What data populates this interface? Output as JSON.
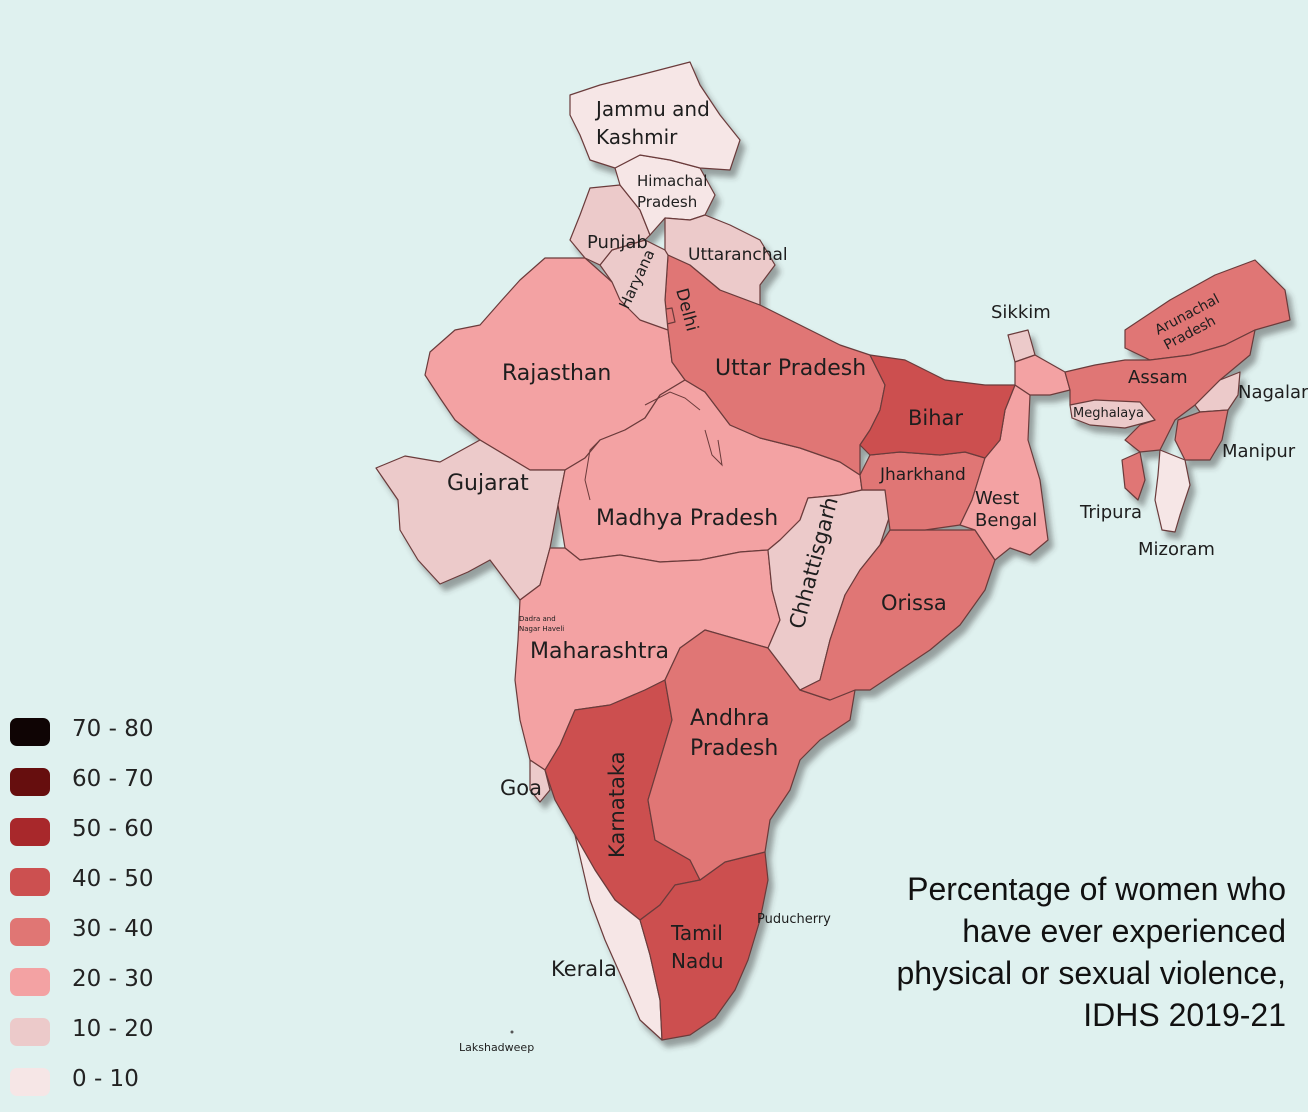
{
  "caption": {
    "line1": "Percentage of women who",
    "line2": "have ever experienced",
    "line3": "physical or sexual violence,",
    "line4": "IDHS 2019-21"
  },
  "legend": [
    {
      "label": "70 - 80",
      "color": "#0f0404"
    },
    {
      "label": "60 - 70",
      "color": "#660e0e"
    },
    {
      "label": "50 - 60",
      "color": "#a8282b"
    },
    {
      "label": "40 - 50",
      "color": "#cc5050"
    },
    {
      "label": "30 - 40",
      "color": "#e07674"
    },
    {
      "label": "20 - 30",
      "color": "#f3a2a3"
    },
    {
      "label": "10 - 20",
      "color": "#eccaca"
    },
    {
      "label": "0 - 10",
      "color": "#f6e6e6"
    }
  ],
  "states": {
    "jammu_kashmir": {
      "l1": "Jammu and",
      "l2": "Kashmir",
      "range": "0 - 10"
    },
    "himachal": {
      "l1": "Himachal",
      "l2": "Pradesh",
      "range": "0 - 10"
    },
    "punjab": {
      "label": "Punjab",
      "range": "10 - 20"
    },
    "haryana": {
      "label": "Haryana",
      "range": "10 - 20"
    },
    "uttaranchal": {
      "label": "Uttaranchal",
      "range": "10 - 20"
    },
    "delhi": {
      "label": "Delhi",
      "range": "30 - 40"
    },
    "rajasthan": {
      "label": "Rajasthan",
      "range": "20 - 30"
    },
    "uttar_pradesh": {
      "label": "Uttar Pradesh",
      "range": "30 - 40"
    },
    "bihar": {
      "label": "Bihar",
      "range": "40 - 50"
    },
    "gujarat": {
      "label": "Gujarat",
      "range": "10 - 20"
    },
    "madhya_pradesh": {
      "label": "Madhya Pradesh",
      "range": "20 - 30"
    },
    "chhattisgarh": {
      "label": "Chhattisgarh",
      "range": "10 - 20"
    },
    "jharkhand": {
      "label": "Jharkhand",
      "range": "30 - 40"
    },
    "west_bengal": {
      "l1": "West",
      "l2": "Bengal",
      "range": "20 - 30"
    },
    "orissa": {
      "label": "Orissa",
      "range": "30 - 40"
    },
    "maharashtra": {
      "label": "Maharashtra",
      "range": "20 - 30"
    },
    "dadra": {
      "l1": "Dadra and",
      "l2": "Nagar Haveli"
    },
    "andhra": {
      "l1": "Andhra",
      "l2": "Pradesh",
      "range": "30 - 40"
    },
    "goa": {
      "label": "Goa",
      "range": "10 - 20"
    },
    "karnataka": {
      "label": "Karnataka",
      "range": "40 - 50"
    },
    "kerala": {
      "label": "Kerala",
      "range": "0 - 10"
    },
    "tamil_nadu": {
      "l1": "Tamil",
      "l2": "Nadu",
      "range": "40 - 50"
    },
    "puducherry": {
      "label": "Puducherry"
    },
    "lakshadweep": {
      "label": "Lakshadweep"
    },
    "sikkim": {
      "label": "Sikkim",
      "range": "10 - 20"
    },
    "arunachal": {
      "l1": "Arunachal",
      "l2": "Pradesh",
      "range": "30 - 40"
    },
    "assam": {
      "label": "Assam",
      "range": "30 - 40"
    },
    "meghalaya": {
      "label": "Meghalaya",
      "range": "10 - 20"
    },
    "nagaland": {
      "label": "Nagalar",
      "range": "10 - 20"
    },
    "manipur": {
      "label": "Manipur",
      "range": "30 - 40"
    },
    "tripura": {
      "label": "Tripura",
      "range": "30 - 40"
    },
    "mizoram": {
      "label": "Mizoram",
      "range": "0 - 10"
    }
  }
}
